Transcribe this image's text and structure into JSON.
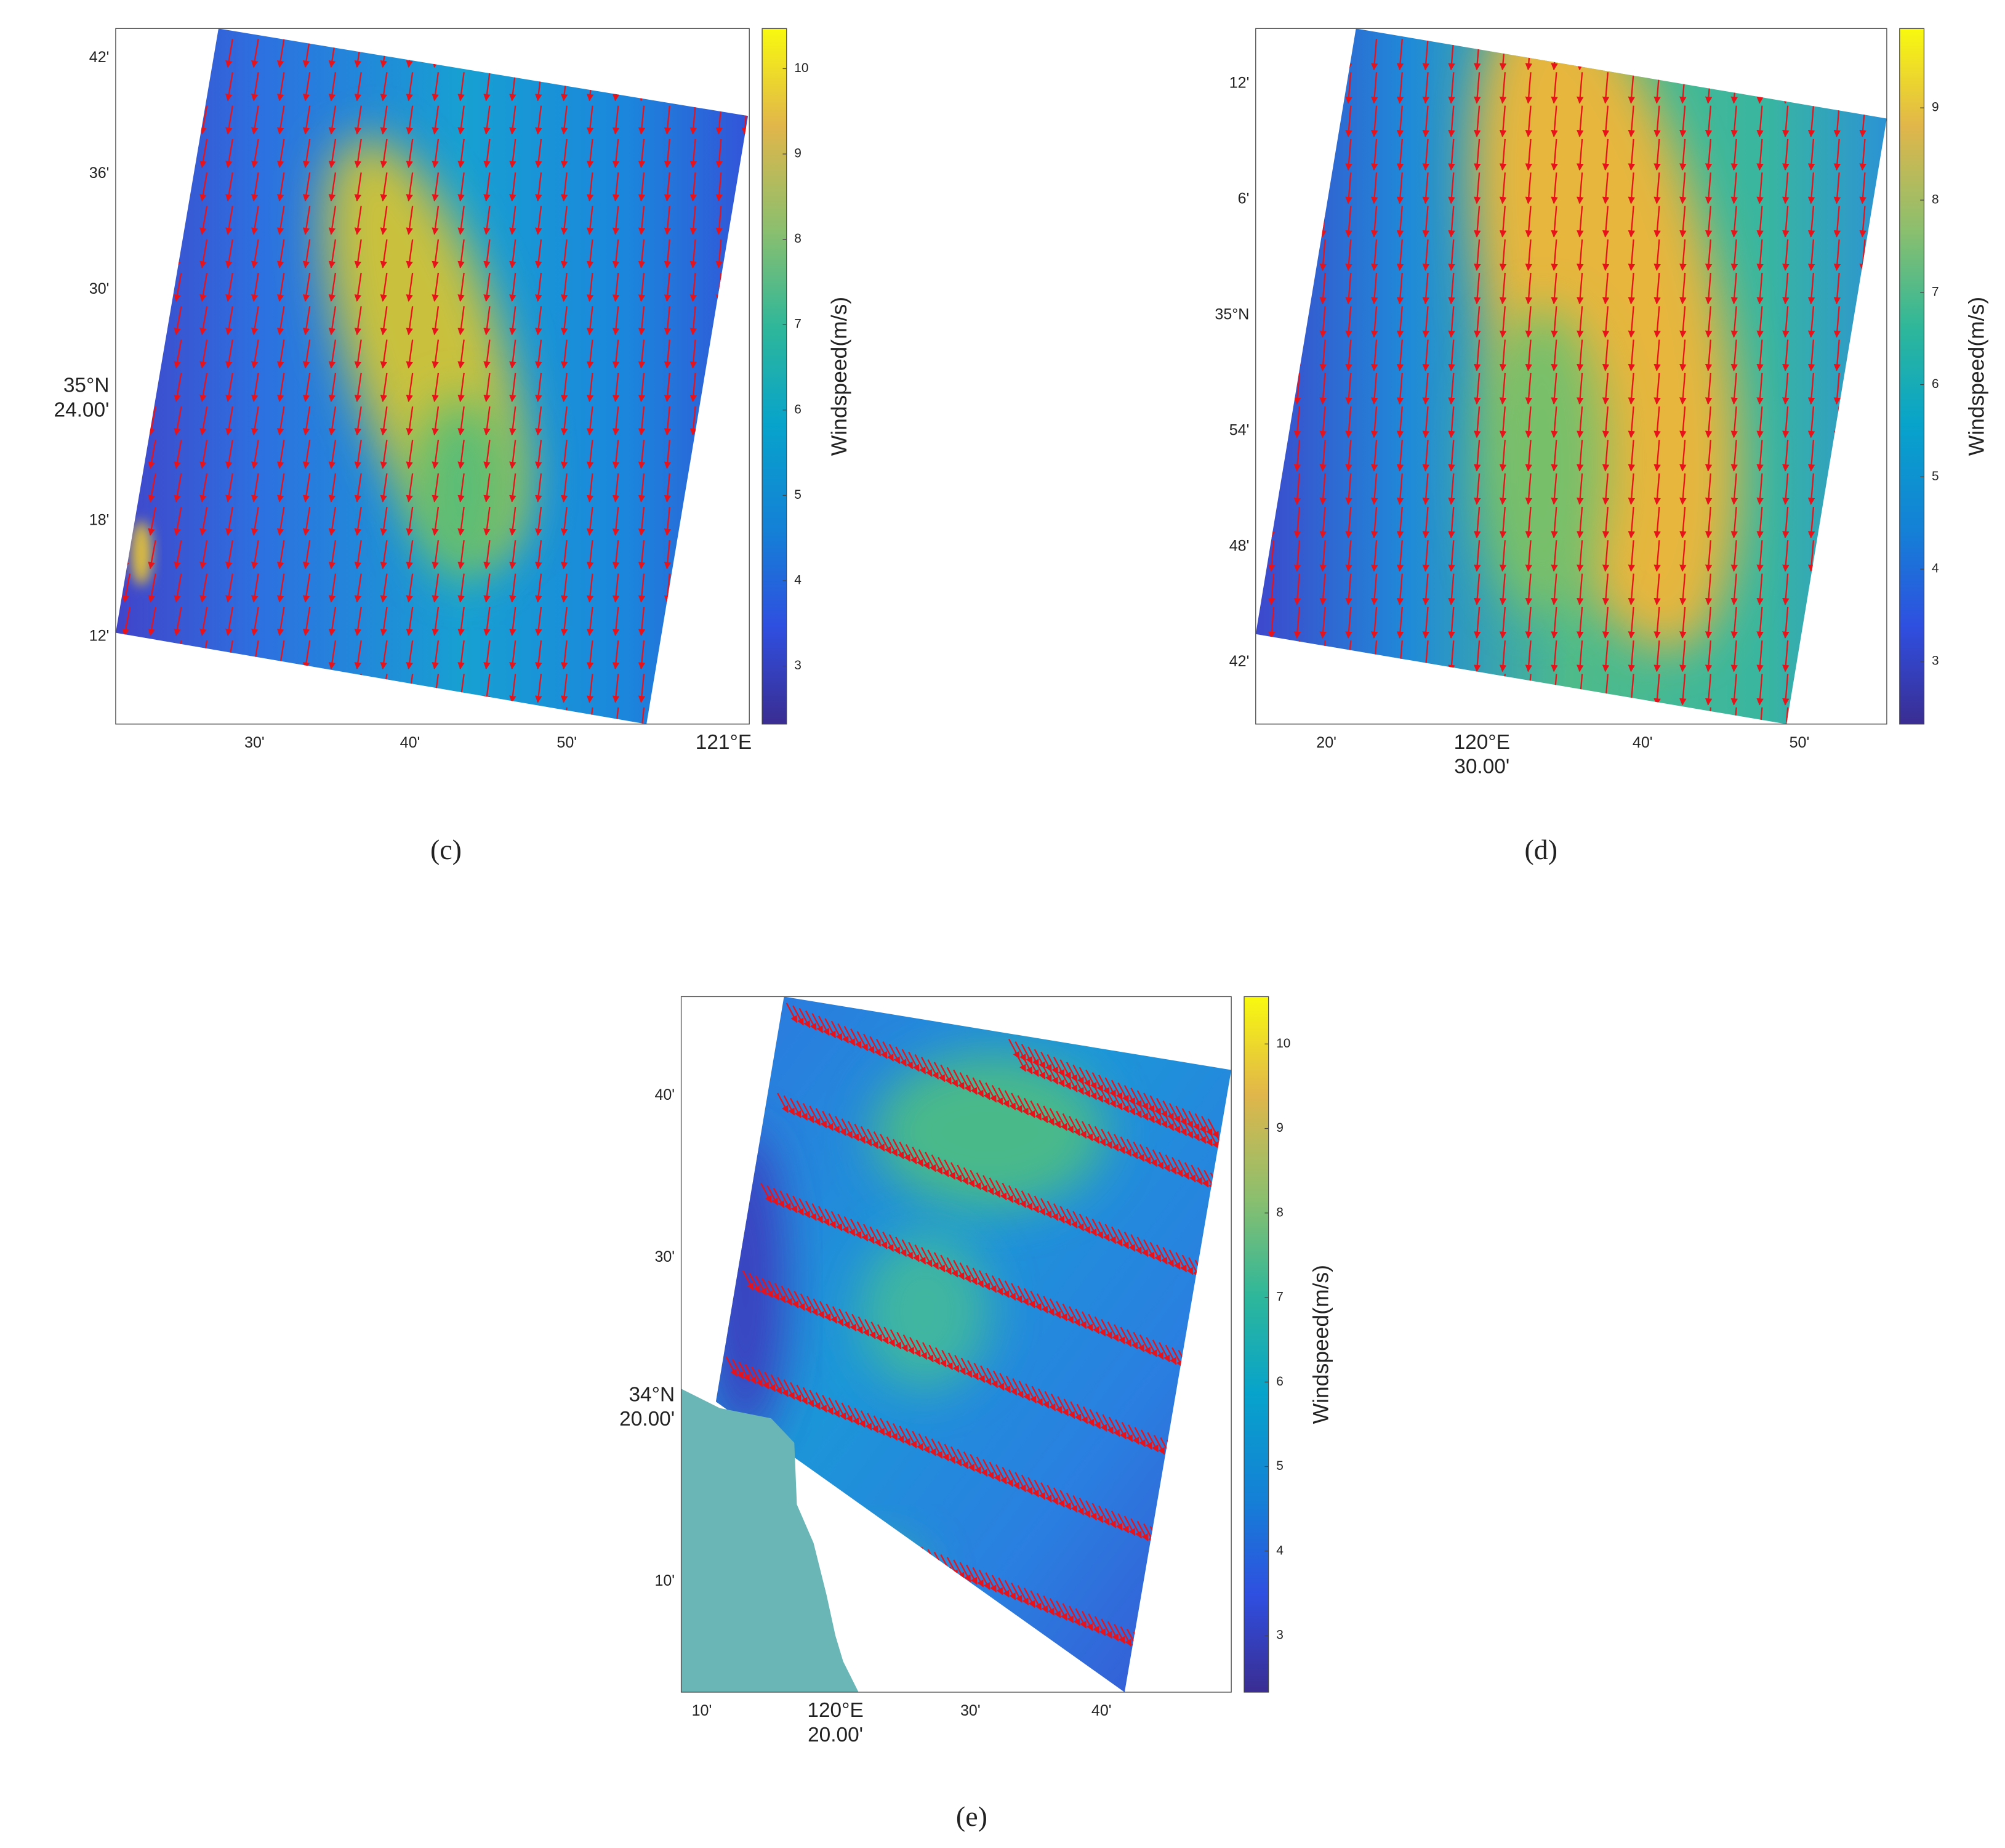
{
  "panels": [
    {
      "label": "(c)",
      "y_labels": [
        [
          "42'"
        ],
        [
          "36'"
        ],
        [
          "30'"
        ],
        [
          "35°N",
          "24.00'"
        ],
        [
          "18'"
        ],
        [
          "12'"
        ]
      ],
      "x_labels": [
        [
          "30'"
        ],
        [
          "40'"
        ],
        [
          "50'"
        ],
        [
          "121°E"
        ]
      ],
      "colorbar": {
        "label": "Windspeed(m/s)",
        "lim": [
          2.32,
          10.47
        ],
        "ticks": [
          3,
          4,
          5,
          6,
          7,
          8,
          9,
          10
        ]
      }
    },
    {
      "label": "(d)",
      "y_labels": [
        [
          "12'"
        ],
        [
          "6'"
        ],
        [
          "35°N"
        ],
        [
          "54'"
        ],
        [
          "48'"
        ],
        [
          "42'"
        ]
      ],
      "x_labels": [
        [
          "20'"
        ],
        [
          "120°E",
          "30.00'"
        ],
        [
          "40'"
        ],
        [
          "50'"
        ]
      ],
      "colorbar": {
        "label": "Windspeed(m/s)",
        "lim": [
          2.32,
          9.86
        ],
        "ticks": [
          3,
          4,
          5,
          6,
          7,
          8,
          9
        ]
      }
    },
    {
      "label": "(e)",
      "y_labels": [
        [
          "40'"
        ],
        [
          "30'"
        ],
        [
          "34°N",
          "20.00'"
        ],
        [
          "10'"
        ]
      ],
      "x_labels": [
        [
          "10'"
        ],
        [
          "120°E",
          "20.00'"
        ],
        [
          "30'"
        ],
        [
          "40'"
        ]
      ],
      "colorbar": {
        "label": "Windspeed(m/s)",
        "lim": [
          2.33,
          10.56
        ],
        "ticks": [
          3,
          4,
          5,
          6,
          7,
          8,
          9,
          10
        ]
      }
    }
  ]
}
